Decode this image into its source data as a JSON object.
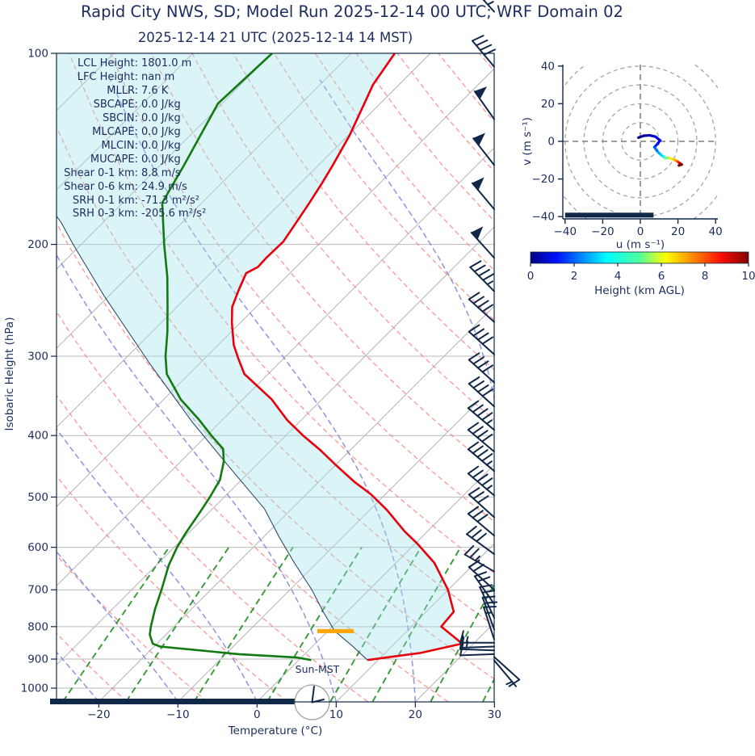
{
  "title": "Rapid City NWS, SD; Model Run 2025-12-14 00 UTC; WRF Domain 02",
  "subtitle": "2025-12-14 21 UTC  (2025-12-14 14 MST)",
  "colors": {
    "navy_text": "#1b2c5e",
    "navy_dark": "#112848",
    "temperature": "#e8000b",
    "dewpoint": "#117a11",
    "parcel": "#23395f",
    "dry_adiabat": "#f87e7e",
    "moist_adiabat": "#7f7fe0",
    "mixing_ratio": "#1f8f1f",
    "isotherm": "#b3b3b3",
    "grid": "#b9b9b9",
    "shading": "rgba(160,225,235,0.38)",
    "lcl_marker": "#ffa500",
    "hodo_ring": "#a6a6a6",
    "hodo_cross": "#909090",
    "clock_face": "#ffffff",
    "clock_ring": "#9a9a9a"
  },
  "chart_data": {
    "type": "skewt-log-p sounding with hodograph",
    "skewt": {
      "xlabel": "Temperature (°C)",
      "ylabel": "Isobaric Height (hPa)",
      "x_tick_labels": [
        "−20",
        "−10",
        "0",
        "10",
        "20",
        "30"
      ],
      "x_ticks": [
        -20,
        -10,
        0,
        10,
        20,
        30
      ],
      "x_range_c": [
        -25.3,
        30
      ],
      "p_ticks": [
        100,
        200,
        300,
        400,
        500,
        600,
        700,
        800,
        900,
        1000
      ],
      "p_range": [
        100,
        1050
      ],
      "skew_deg": 45,
      "sun_label": "Sun-MST",
      "clock_time": "14:00",
      "stats": [
        {
          "label": "LCL Height:",
          "value": "1801.0 m"
        },
        {
          "label": "LFC Height:",
          "value": "nan m"
        },
        {
          "label": "MLLR:",
          "value": "7.6 K"
        },
        {
          "label": "SBCAPE:",
          "value": "0.0 J/kg"
        },
        {
          "label": "SBCIN:",
          "value": "0.0 J/kg"
        },
        {
          "label": "MLCAPE:",
          "value": "0.0 J/kg"
        },
        {
          "label": "MLCIN:",
          "value": "0.0 J/kg"
        },
        {
          "label": "MUCAPE:",
          "value": "0.0 J/kg"
        },
        {
          "label": "Shear 0-1 km:",
          "value": "8.8 m/s"
        },
        {
          "label": "Shear 0-6 km:",
          "value": "24.9 m/s"
        },
        {
          "label": "SRH 0-1 km:",
          "value": "-71.3 m²/s²"
        },
        {
          "label": "SRH 0-3 km:",
          "value": "-205.6 m²/s²"
        }
      ],
      "temperature_profile": [
        [
          100,
          -64.5
        ],
        [
          112,
          -63.3
        ],
        [
          120,
          -62.0
        ],
        [
          135,
          -59.8
        ],
        [
          150,
          -58.2
        ],
        [
          160,
          -57.3
        ],
        [
          172,
          -56.4
        ],
        [
          186,
          -55.5
        ],
        [
          198,
          -54.8
        ],
        [
          210,
          -54.9
        ],
        [
          217,
          -54.8
        ],
        [
          222,
          -55.5
        ],
        [
          235,
          -54.4
        ],
        [
          251,
          -53.0
        ],
        [
          266,
          -51.0
        ],
        [
          288,
          -48.0
        ],
        [
          302,
          -45.8
        ],
        [
          320,
          -43.0
        ],
        [
          351,
          -36.3
        ],
        [
          378,
          -31.8
        ],
        [
          400,
          -27.8
        ],
        [
          421,
          -23.9
        ],
        [
          446,
          -19.8
        ],
        [
          473,
          -15.5
        ],
        [
          495,
          -11.8
        ],
        [
          524,
          -7.8
        ],
        [
          566,
          -2.9
        ],
        [
          593,
          0.4
        ],
        [
          635,
          4.9
        ],
        [
          700,
          10.0
        ],
        [
          758,
          13.5
        ],
        [
          800,
          13.8
        ],
        [
          851,
          18.6
        ],
        [
          880,
          14.5
        ],
        [
          903,
          8.7
        ]
      ],
      "dewpoint_profile": [
        [
          100,
          -80.0
        ],
        [
          120,
          -80.5
        ],
        [
          150,
          -77.0
        ],
        [
          172,
          -75.0
        ],
        [
          200,
          -69.5
        ],
        [
          225,
          -65.0
        ],
        [
          250,
          -61.3
        ],
        [
          275,
          -58.0
        ],
        [
          300,
          -55.2
        ],
        [
          320,
          -52.8
        ],
        [
          351,
          -47.8
        ],
        [
          378,
          -42.9
        ],
        [
          400,
          -39.4
        ],
        [
          420,
          -36.2
        ],
        [
          440,
          -34.5
        ],
        [
          470,
          -32.7
        ],
        [
          500,
          -31.8
        ],
        [
          530,
          -31.1
        ],
        [
          570,
          -30.3
        ],
        [
          600,
          -29.6
        ],
        [
          640,
          -28.4
        ],
        [
          700,
          -26.2
        ],
        [
          750,
          -24.6
        ],
        [
          800,
          -22.9
        ],
        [
          824,
          -22.0
        ],
        [
          851,
          -20.5
        ],
        [
          860,
          -19.2
        ],
        [
          884,
          -8.3
        ],
        [
          895,
          -0.5
        ],
        [
          903,
          1.6
        ]
      ],
      "parcel_profile": [
        [
          903,
          8.7
        ],
        [
          858,
          5.0
        ],
        [
          813,
          0.9
        ],
        [
          758,
          -3.0
        ],
        [
          700,
          -7.2
        ],
        [
          635,
          -12.8
        ],
        [
          578,
          -18.0
        ],
        [
          522,
          -23.4
        ],
        [
          448,
          -33.2
        ],
        [
          381,
          -43.5
        ],
        [
          308,
          -56.3
        ],
        [
          241,
          -70.6
        ],
        [
          200,
          -81.0
        ],
        [
          185,
          -85.2
        ],
        [
          178,
          -87.5
        ]
      ],
      "lcl_marker": {
        "pressure": 813,
        "temp": 1.0,
        "half_width_c": 2.3
      },
      "surface_time_bar": {
        "temp_from": -26.3,
        "temp_to": 4.6,
        "pressure": 1045
      },
      "wind_barbs": [
        [
          86,
          45,
          318
        ],
        [
          105,
          40,
          320
        ],
        [
          127,
          50,
          325
        ],
        [
          150,
          50,
          322
        ],
        [
          176,
          50,
          320
        ],
        [
          210,
          50,
          318
        ],
        [
          237,
          45,
          315
        ],
        [
          265,
          40,
          312
        ],
        [
          298,
          38,
          312
        ],
        [
          330,
          40,
          312
        ],
        [
          360,
          42,
          312
        ],
        [
          392,
          45,
          310
        ],
        [
          424,
          40,
          310
        ],
        [
          455,
          45,
          310
        ],
        [
          497,
          45,
          310
        ],
        [
          538,
          30,
          312
        ],
        [
          575,
          30,
          310
        ],
        [
          615,
          28,
          306
        ],
        [
          655,
          25,
          300
        ],
        [
          700,
          22,
          312
        ],
        [
          737,
          20,
          325
        ],
        [
          775,
          20,
          335
        ],
        [
          808,
          18,
          340
        ],
        [
          838,
          15,
          342
        ],
        [
          848,
          15,
          270
        ],
        [
          860,
          14,
          268
        ],
        [
          872,
          12,
          272
        ],
        [
          884,
          10,
          268
        ],
        [
          893,
          8,
          132
        ],
        [
          904,
          6,
          140
        ]
      ],
      "background": {
        "isotherms_c": {
          "from": -110,
          "to": 30,
          "step": 10
        },
        "dry_adiabats_c": {
          "from": -60,
          "to": 170,
          "step": 10
        },
        "moist_adiabats_c": {
          "from": -60,
          "to": 40,
          "step": 10
        },
        "mixing_ratios_gkg": [
          0.5,
          1,
          2,
          4,
          7,
          10,
          16,
          24
        ],
        "mixing_ratio_top_hpa": 600
      }
    },
    "hodograph": {
      "xlabel": "u (m s⁻¹)",
      "ylabel": "v (m s⁻¹)",
      "tick_labels": [
        "−40",
        "−20",
        "0",
        "20",
        "40"
      ],
      "ticks": [
        -40,
        -20,
        0,
        20,
        40
      ],
      "range": [
        -40,
        40
      ],
      "rings": [
        10,
        20,
        30,
        40,
        50
      ],
      "trace": [
        [
          -1,
          2,
          "#000080"
        ],
        [
          2,
          3,
          "#000090"
        ],
        [
          5,
          3.2,
          "#0000a8"
        ],
        [
          8,
          2.5,
          "#0000c0"
        ],
        [
          10.5,
          0.5,
          "#0000d8"
        ],
        [
          9,
          -1.5,
          "#0000f0"
        ],
        [
          7.5,
          -3,
          "#0018ff"
        ],
        [
          8.3,
          -4.3,
          "#0048ff"
        ],
        [
          9.5,
          -5.8,
          "#0078ff"
        ],
        [
          11,
          -7.2,
          "#00a8ff"
        ],
        [
          12.3,
          -8.2,
          "#00d8ff"
        ],
        [
          13.3,
          -8.9,
          "#18ffe0"
        ],
        [
          14.2,
          -8.7,
          "#50ffa8"
        ],
        [
          15.3,
          -8.8,
          "#90ff68"
        ],
        [
          16.5,
          -9.2,
          "#c8ff30"
        ],
        [
          17.8,
          -9.7,
          "#f8f000"
        ],
        [
          19,
          -10.3,
          "#ffc000"
        ],
        [
          20,
          -10.9,
          "#ff8000"
        ],
        [
          20.8,
          -11.5,
          "#ff3800"
        ],
        [
          21.5,
          -12,
          "#e00000"
        ],
        [
          22,
          -12.3,
          "#b00000"
        ],
        [
          20.5,
          -12.8,
          "#800000"
        ]
      ],
      "surface_bar": {
        "v": -39.2,
        "u_from": -40,
        "u_to": 7
      }
    },
    "colorbar": {
      "label": "Height (km AGL)",
      "ticks": [
        0,
        2,
        4,
        6,
        8,
        10
      ],
      "min": 0,
      "max": 10,
      "colormap": "jet",
      "gradient_stops": [
        [
          0,
          "#000080"
        ],
        [
          0.12,
          "#0010ff"
        ],
        [
          0.35,
          "#00ffff"
        ],
        [
          0.5,
          "#50ff9a"
        ],
        [
          0.62,
          "#ffff00"
        ],
        [
          0.87,
          "#ff1000"
        ],
        [
          1,
          "#800000"
        ]
      ]
    }
  }
}
